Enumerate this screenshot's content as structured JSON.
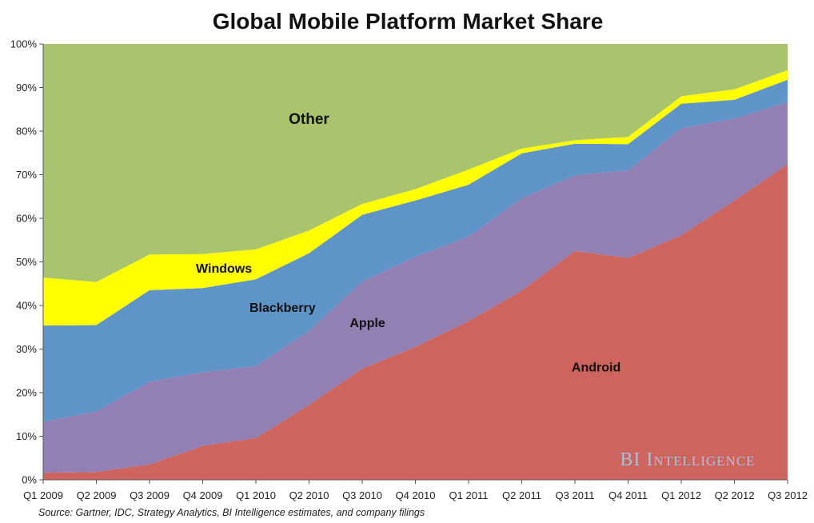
{
  "chart_data": {
    "type": "area",
    "stacked": true,
    "title": "Global Mobile Platform Market Share",
    "categories": [
      "Q1 2009",
      "Q2 2009",
      "Q3 2009",
      "Q4 2009",
      "Q1 2010",
      "Q2 2010",
      "Q3 2010",
      "Q4 2010",
      "Q1 2011",
      "Q2 2011",
      "Q3 2011",
      "Q4 2011",
      "Q1 2012",
      "Q2 2012",
      "Q3 2012"
    ],
    "y_ticks": [
      "0%",
      "10%",
      "20%",
      "30%",
      "40%",
      "50%",
      "60%",
      "70%",
      "80%",
      "90%",
      "100%"
    ],
    "ylim": [
      0,
      100
    ],
    "series": [
      {
        "name": "Android",
        "label": "Android",
        "color": "#cd645e",
        "values": [
          1.6,
          1.8,
          3.5,
          7.8,
          9.6,
          17.2,
          25.5,
          30.5,
          36.4,
          43.4,
          52.5,
          50.9,
          56.1,
          64.1,
          72.4
        ]
      },
      {
        "name": "Apple",
        "label": "Apple",
        "color": "#9280b4",
        "values": [
          11.7,
          13.9,
          19.0,
          16.9,
          16.5,
          17.0,
          20.0,
          20.7,
          19.4,
          21.2,
          17.4,
          20.1,
          24.6,
          18.8,
          14.3
        ]
      },
      {
        "name": "Blackberry",
        "label": "Blackberry",
        "color": "#5f94c8",
        "values": [
          22.1,
          19.8,
          21.0,
          19.3,
          19.9,
          17.8,
          15.3,
          12.9,
          11.9,
          10.3,
          7.2,
          6.0,
          5.6,
          4.3,
          5.1
        ]
      },
      {
        "name": "Windows",
        "label": "Windows",
        "color": "#ffff00",
        "values": [
          11.0,
          9.9,
          8.2,
          7.8,
          6.9,
          5.2,
          2.5,
          2.6,
          3.5,
          1.1,
          0.8,
          1.7,
          1.7,
          2.4,
          2.2
        ]
      },
      {
        "name": "Other",
        "label": "Other",
        "color": "#a9c46c",
        "values": [
          53.6,
          54.6,
          48.3,
          48.2,
          47.1,
          42.8,
          36.7,
          33.3,
          28.8,
          24.0,
          22.1,
          21.3,
          12.0,
          10.4,
          6.0
        ]
      }
    ],
    "watermark": "BI Intelligence",
    "source": "Source: Gartner, IDC, Strategy Analytics, BI Intelligence estimates, and company filings"
  }
}
